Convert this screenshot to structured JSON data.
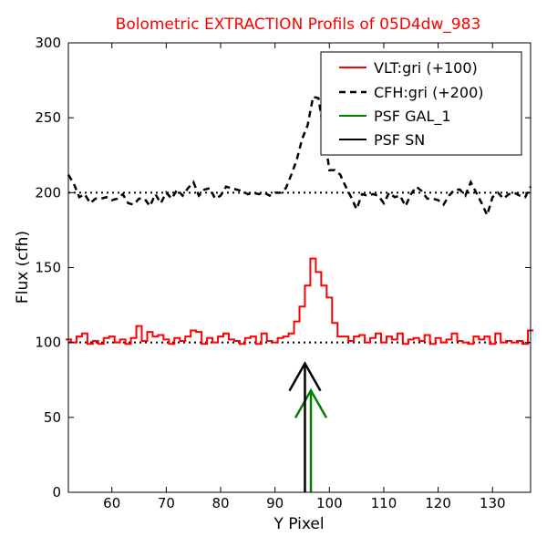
{
  "chart_data": {
    "type": "line",
    "title": "Bolometric EXTRACTION Profils of 05D4dw_983",
    "title_color": "#ff0000",
    "xlabel": "Y Pixel",
    "ylabel": "Flux (cfh)",
    "xlim": [
      52,
      137
    ],
    "ylim": [
      0,
      300
    ],
    "xticks": [
      60,
      70,
      80,
      90,
      100,
      110,
      120,
      130
    ],
    "yticks": [
      0,
      50,
      100,
      150,
      200,
      250,
      300
    ],
    "grid": false,
    "legend_position": "top-right",
    "reference_lines": [
      {
        "y": 100,
        "style": "dotted",
        "color": "#000000"
      },
      {
        "y": 200,
        "style": "dotted",
        "color": "#000000"
      }
    ],
    "series": [
      {
        "name": "VLT:gri (+100)",
        "color": "#ff0000",
        "style": "steps",
        "x": [
          52,
          53,
          54,
          55,
          56,
          57,
          58,
          59,
          60,
          61,
          62,
          63,
          64,
          65,
          66,
          67,
          68,
          69,
          70,
          71,
          72,
          73,
          74,
          75,
          76,
          77,
          78,
          79,
          80,
          81,
          82,
          83,
          84,
          85,
          86,
          87,
          88,
          89,
          90,
          91,
          92,
          93,
          94,
          95,
          96,
          97,
          98,
          99,
          100,
          101,
          102,
          103,
          104,
          105,
          106,
          107,
          108,
          109,
          110,
          111,
          112,
          113,
          114,
          115,
          116,
          117,
          118,
          119,
          120,
          121,
          122,
          123,
          124,
          125,
          126,
          127,
          128,
          129,
          130,
          131,
          132,
          133,
          134,
          135,
          136,
          137
        ],
        "values": [
          102,
          100,
          104,
          106,
          99,
          101,
          99,
          103,
          104,
          100,
          102,
          99,
          103,
          111,
          101,
          107,
          104,
          105,
          102,
          99,
          103,
          101,
          104,
          108,
          107,
          99,
          103,
          100,
          104,
          106,
          102,
          101,
          99,
          103,
          104,
          99,
          106,
          101,
          100,
          103,
          104,
          106,
          114,
          124,
          138,
          156,
          147,
          138,
          130,
          113,
          104,
          104,
          101,
          104,
          105,
          100,
          103,
          106,
          100,
          104,
          102,
          106,
          99,
          102,
          103,
          101,
          105,
          99,
          103,
          100,
          102,
          106,
          101,
          100,
          99,
          104,
          102,
          104,
          99,
          106,
          100,
          101,
          100,
          101,
          99,
          108
        ]
      },
      {
        "name": "CFH:gri (+200)",
        "color": "#000000",
        "style": "dashed",
        "x": [
          52,
          53,
          54,
          55,
          56,
          57,
          58,
          59,
          60,
          61,
          62,
          63,
          64,
          65,
          66,
          67,
          68,
          69,
          70,
          71,
          72,
          73,
          74,
          75,
          76,
          77,
          78,
          79,
          80,
          81,
          82,
          83,
          84,
          85,
          86,
          87,
          88,
          89,
          90,
          91,
          92,
          93,
          94,
          95,
          96,
          97,
          98,
          99,
          100,
          101,
          102,
          103,
          104,
          105,
          106,
          107,
          108,
          109,
          110,
          111,
          112,
          113,
          114,
          115,
          116,
          117,
          118,
          119,
          120,
          121,
          122,
          123,
          124,
          125,
          126,
          127,
          128,
          129,
          130,
          131,
          132,
          133,
          134,
          135,
          136,
          137
        ],
        "values": [
          212,
          206,
          197,
          199,
          193,
          196,
          196,
          197,
          195,
          196,
          199,
          193,
          192,
          196,
          196,
          191,
          199,
          193,
          200,
          196,
          202,
          198,
          203,
          207,
          198,
          202,
          203,
          196,
          198,
          204,
          203,
          202,
          201,
          199,
          200,
          199,
          200,
          198,
          200,
          200,
          203,
          212,
          222,
          236,
          245,
          264,
          263,
          240,
          215,
          215,
          212,
          204,
          197,
          189,
          199,
          198,
          199,
          198,
          193,
          200,
          197,
          198,
          191,
          199,
          204,
          201,
          196,
          196,
          195,
          192,
          198,
          202,
          202,
          198,
          207,
          200,
          193,
          185,
          197,
          200,
          196,
          199,
          200,
          198,
          197,
          204
        ]
      }
    ],
    "arrows": [
      {
        "name": "PSF GAL_1",
        "color": "#008000",
        "x": 96.6,
        "y_from": 0,
        "y_to": 68
      },
      {
        "name": "PSF SN",
        "color": "#000000",
        "x": 95.5,
        "y_from": 0,
        "y_to": 86
      }
    ],
    "legend": [
      {
        "label": "VLT:gri (+100)",
        "color": "#ff0000",
        "style": "solid"
      },
      {
        "label": "CFH:gri (+200)",
        "color": "#000000",
        "style": "dashed"
      },
      {
        "label": "PSF GAL_1",
        "color": "#008000",
        "style": "solid"
      },
      {
        "label": "PSF SN",
        "color": "#000000",
        "style": "solid"
      }
    ]
  }
}
